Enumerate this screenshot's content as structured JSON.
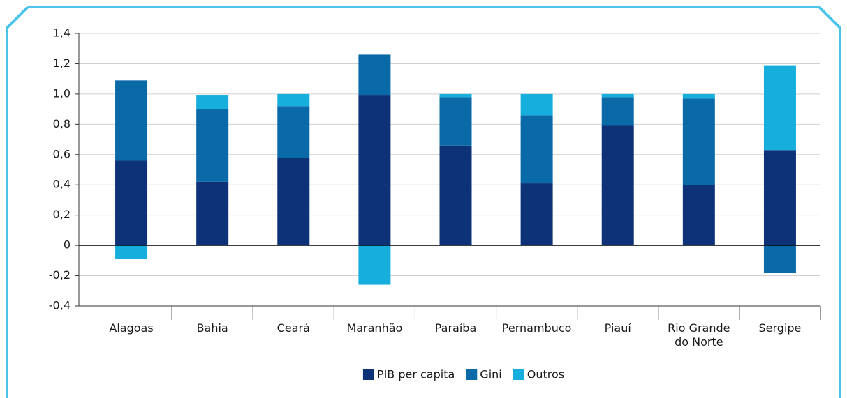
{
  "chart_data": {
    "type": "stacked-bar",
    "categories": [
      "Alagoas",
      "Bahia",
      "Ceará",
      "Maranhão",
      "Paraíba",
      "Pernambuco",
      "Piauí",
      "Rio Grande do Norte",
      "Sergipe"
    ],
    "series": [
      {
        "name": "PIB per capita",
        "color": "#0d3278",
        "values": [
          0.56,
          0.42,
          0.58,
          0.99,
          0.66,
          0.41,
          0.79,
          0.4,
          0.63
        ]
      },
      {
        "name": "Gini",
        "color": "#0a6aa8",
        "values": [
          0.53,
          0.48,
          0.34,
          0.27,
          0.32,
          0.45,
          0.19,
          0.57,
          -0.18
        ]
      },
      {
        "name": "Outros",
        "color": "#16afdd",
        "values": [
          -0.09,
          0.09,
          0.08,
          -0.26,
          0.02,
          0.14,
          0.02,
          0.03,
          0.56
        ]
      }
    ],
    "ylim": [
      -0.4,
      1.4
    ],
    "yticks": [
      {
        "value": -0.4,
        "label": "-0,4"
      },
      {
        "value": -0.2,
        "label": "-0,2"
      },
      0,
      {
        "value": 0.2,
        "label": "0,2"
      },
      {
        "value": 0.4,
        "label": "0,4"
      },
      {
        "value": 0.6,
        "label": "0,6"
      },
      {
        "value": 0.8,
        "label": "0,8"
      },
      {
        "value": 1.0,
        "label": "1,0"
      },
      {
        "value": 1.2,
        "label": "1,2"
      },
      {
        "value": 1.4,
        "label": "1,4"
      }
    ],
    "grid": true
  }
}
